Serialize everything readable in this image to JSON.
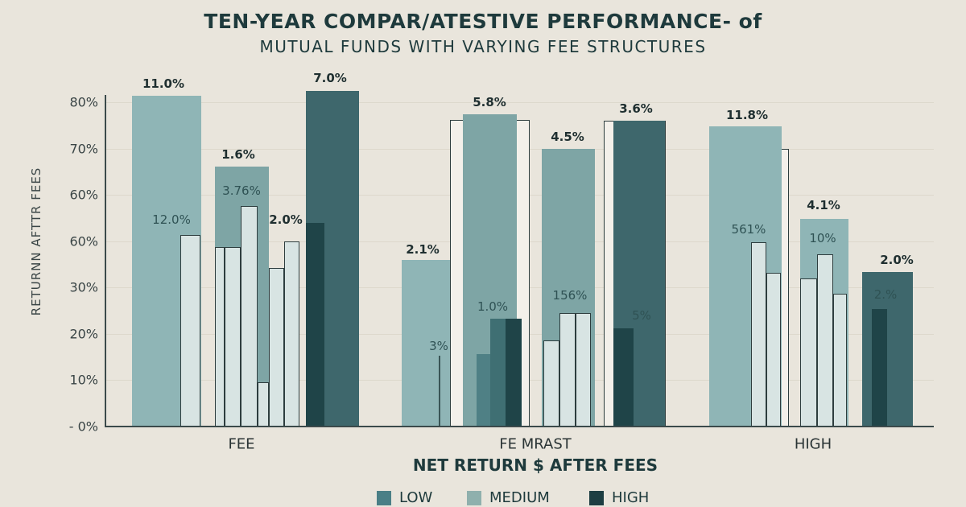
{
  "chart_data": {
    "type": "bar",
    "title": "TEN-YEAR COMPAR/ATESTIVE PERFORMANCE- of",
    "subtitle": "MUTUAL FUNDS WITH VARYING FEE STRUCTURES",
    "xlabel": "NET RETURN $ AFTER FEES",
    "ylabel": "RETURNN AFTTR FEES",
    "ylim": [
      0,
      70
    ],
    "grid": true,
    "y_ticks": [
      "- 0%",
      "10%",
      "20%",
      "30%",
      "60%",
      "60%",
      "70%",
      "80%"
    ],
    "categories": [
      "FEE",
      "FE MRAST",
      "HIGH"
    ],
    "legend": {
      "placement": "bottom",
      "items": [
        {
          "label": "LOW",
          "color": "#4a7f86"
        },
        {
          "label": "MEDIUM",
          "color": "#8fb0ad"
        },
        {
          "label": "HIGH",
          "color": "#1d3e42"
        }
      ]
    },
    "colors": {
      "light": "#8fb5b6",
      "medium": "#7ea5a5",
      "darkteal": "#3e676c",
      "dark": "#1f4448",
      "pale": "#d8e4e3",
      "background": "#e9e5dc"
    },
    "bars": [
      {
        "group": "FEE",
        "kind": "light",
        "value": 71.4
      },
      {
        "group": "FEE",
        "kind": "pale",
        "value": 41.3
      },
      {
        "group": "FEE",
        "kind": "medium",
        "value": 56.1
      },
      {
        "group": "FEE",
        "kind": "pale",
        "value": 38.7
      },
      {
        "group": "FEE",
        "kind": "pale",
        "value": 38.7
      },
      {
        "group": "FEE",
        "kind": "pale",
        "value": 47.6
      },
      {
        "group": "FEE",
        "kind": "pale",
        "value": 9.6
      },
      {
        "group": "FEE",
        "kind": "pale",
        "value": 34.2
      },
      {
        "group": "FEE",
        "kind": "pale",
        "value": 40.0
      },
      {
        "group": "FEE",
        "kind": "darkteal",
        "value": 72.4
      },
      {
        "group": "FEE",
        "kind": "dark",
        "value": 43.9
      },
      {
        "group": "FE MRAST",
        "kind": "light",
        "value": 36.0
      },
      {
        "group": "FE MRAST",
        "kind": "line",
        "value": 15.3
      },
      {
        "group": "FE MRAST",
        "kind": "outline",
        "value": 66.2
      },
      {
        "group": "FE MRAST",
        "kind": "medium",
        "value": 67.4
      },
      {
        "group": "FE MRAST",
        "kind": "midteal",
        "value": 15.6
      },
      {
        "group": "FE MRAST",
        "kind": "teal2",
        "value": 23.3
      },
      {
        "group": "FE MRAST",
        "kind": "dark",
        "value": 23.3
      },
      {
        "group": "FE MRAST",
        "kind": "medium",
        "value": 59.9
      },
      {
        "group": "FE MRAST",
        "kind": "pale",
        "value": 18.6
      },
      {
        "group": "FE MRAST",
        "kind": "pale",
        "value": 24.5
      },
      {
        "group": "FE MRAST",
        "kind": "pale",
        "value": 24.5
      },
      {
        "group": "FE MRAST",
        "kind": "outline",
        "value": 66.0
      },
      {
        "group": "FE MRAST",
        "kind": "darkteal",
        "value": 66.0
      },
      {
        "group": "FE MRAST",
        "kind": "dark",
        "value": 21.2
      },
      {
        "group": "HIGH",
        "kind": "outline",
        "value": 59.9
      },
      {
        "group": "HIGH",
        "kind": "light",
        "value": 64.8
      },
      {
        "group": "HIGH",
        "kind": "pale",
        "value": 39.8
      },
      {
        "group": "HIGH",
        "kind": "pale",
        "value": 33.2
      },
      {
        "group": "HIGH",
        "kind": "light",
        "value": 44.8
      },
      {
        "group": "HIGH",
        "kind": "pale",
        "value": 32.0
      },
      {
        "group": "HIGH",
        "kind": "pale",
        "value": 37.2
      },
      {
        "group": "HIGH",
        "kind": "pale",
        "value": 28.7
      },
      {
        "group": "HIGH",
        "kind": "darkteal",
        "value": 33.4
      },
      {
        "group": "HIGH",
        "kind": "dark",
        "value": 25.4
      }
    ],
    "data_labels": [
      {
        "text": "11.0%",
        "style": "b"
      },
      {
        "text": "12.0%",
        "style": "n"
      },
      {
        "text": "1.6%",
        "style": "b"
      },
      {
        "text": "3.76%",
        "style": "n"
      },
      {
        "text": "2.0%",
        "style": "b"
      },
      {
        "text": "7.0%",
        "style": "b"
      },
      {
        "text": "2.1%",
        "style": "b"
      },
      {
        "text": "3%",
        "style": "n"
      },
      {
        "text": "5.8%",
        "style": "b"
      },
      {
        "text": "1.0%",
        "style": "n"
      },
      {
        "text": "4.5%",
        "style": "b"
      },
      {
        "text": "156%",
        "style": "n"
      },
      {
        "text": "3.6%",
        "style": "b"
      },
      {
        "text": "5%",
        "style": "n"
      },
      {
        "text": "11.8%",
        "style": "b"
      },
      {
        "text": "561%",
        "style": "n"
      },
      {
        "text": "4.1%",
        "style": "b"
      },
      {
        "text": "10%",
        "style": "n"
      },
      {
        "text": "2.0%",
        "style": "b"
      },
      {
        "text": "2.%",
        "style": "n"
      }
    ]
  }
}
